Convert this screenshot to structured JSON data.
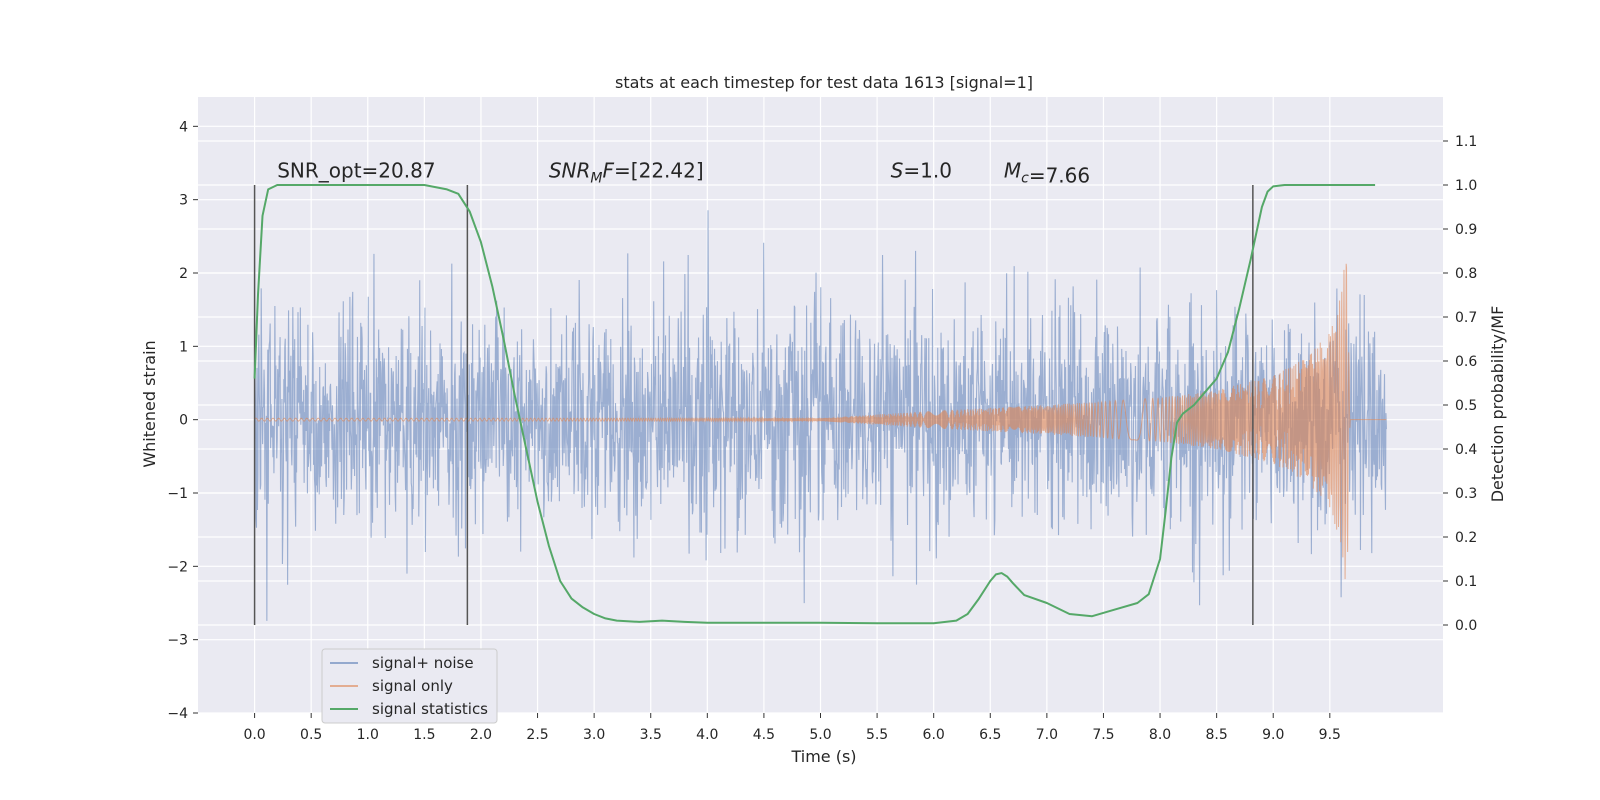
{
  "chart_data": {
    "type": "line",
    "title": "stats at each timestep for test data 1613 [signal=1]",
    "xlabel": "Time (s)",
    "ylabel_left": "Whitened strain",
    "ylabel_right": "Detection probability/MF",
    "xlim": [
      -0.5,
      10.5
    ],
    "ylim_left": [
      -4.0,
      4.4
    ],
    "ylim_right": [
      -0.2,
      1.2
    ],
    "x_ticks": [
      "0.0",
      "0.5",
      "1.0",
      "1.5",
      "2.0",
      "2.5",
      "3.0",
      "3.5",
      "4.0",
      "4.5",
      "5.0",
      "5.5",
      "6.0",
      "6.5",
      "7.0",
      "7.5",
      "8.0",
      "8.5",
      "9.0",
      "9.5"
    ],
    "y_left_ticks": [
      "−4",
      "−3",
      "−2",
      "−1",
      "0",
      "1",
      "2",
      "3",
      "4"
    ],
    "y_right_ticks": [
      "0.0",
      "0.1",
      "0.2",
      "0.3",
      "0.4",
      "0.5",
      "0.6",
      "0.7",
      "0.8",
      "0.9",
      "1.0",
      "1.1"
    ],
    "grid": true,
    "legend_position": "lower-left",
    "colors": {
      "signal_noise": "#4c72b0",
      "signal_only": "#dd8452",
      "signal_statistics": "#55a868",
      "vertical_markers": "#555555",
      "axes_bg": "#eaeaf2",
      "grid": "#ffffff"
    },
    "series": [
      {
        "name": "signal+ noise",
        "description_range": "white noise spanning roughly −2 to 2 with peaks near ±3.5 over 0–10 s",
        "time_range": [
          0.0,
          10.0
        ],
        "envelope": 1.4
      },
      {
        "name": "signal only",
        "time_range": [
          0.0,
          9.68
        ],
        "envelope": [
          [
            0.0,
            0.02
          ],
          [
            5.0,
            0.02
          ],
          [
            6.0,
            0.12
          ],
          [
            7.0,
            0.2
          ],
          [
            8.0,
            0.3
          ],
          [
            8.5,
            0.4
          ],
          [
            9.0,
            0.6
          ],
          [
            9.3,
            0.85
          ],
          [
            9.5,
            1.2
          ],
          [
            9.6,
            1.7
          ],
          [
            9.65,
            2.4
          ],
          [
            9.68,
            0.0
          ]
        ]
      },
      {
        "name": "signal statistics",
        "x": [
          0.0,
          0.03,
          0.07,
          0.12,
          0.2,
          0.3,
          0.5,
          1.0,
          1.5,
          1.7,
          1.8,
          1.9,
          2.0,
          2.1,
          2.2,
          2.3,
          2.4,
          2.5,
          2.6,
          2.7,
          2.8,
          2.9,
          3.0,
          3.1,
          3.2,
          3.4,
          3.6,
          3.8,
          4.0,
          4.5,
          5.0,
          5.5,
          6.0,
          6.2,
          6.3,
          6.4,
          6.5,
          6.55,
          6.6,
          6.65,
          6.7,
          6.8,
          7.0,
          7.2,
          7.4,
          7.6,
          7.8,
          7.9,
          8.0,
          8.05,
          8.1,
          8.15,
          8.2,
          8.3,
          8.4,
          8.5,
          8.6,
          8.7,
          8.8,
          8.9,
          8.95,
          9.0,
          9.1,
          9.5,
          9.9
        ],
        "y": [
          0.56,
          0.75,
          0.93,
          0.99,
          1.0,
          1.0,
          1.0,
          1.0,
          1.0,
          0.99,
          0.98,
          0.94,
          0.87,
          0.77,
          0.65,
          0.52,
          0.4,
          0.28,
          0.18,
          0.1,
          0.06,
          0.04,
          0.025,
          0.015,
          0.01,
          0.007,
          0.01,
          0.007,
          0.005,
          0.005,
          0.005,
          0.004,
          0.004,
          0.01,
          0.025,
          0.06,
          0.1,
          0.115,
          0.118,
          0.11,
          0.095,
          0.068,
          0.05,
          0.025,
          0.02,
          0.035,
          0.05,
          0.07,
          0.15,
          0.26,
          0.38,
          0.46,
          0.48,
          0.5,
          0.53,
          0.56,
          0.62,
          0.72,
          0.83,
          0.95,
          0.985,
          0.997,
          1.0,
          1.0,
          1.0
        ]
      }
    ],
    "vertical_markers": [
      {
        "x": 0.0,
        "y": [
          -2.8,
          3.2
        ]
      },
      {
        "x": 1.88,
        "y": [
          -2.8,
          3.2
        ]
      },
      {
        "x": 8.82,
        "y": [
          -2.8,
          3.2
        ]
      }
    ],
    "annotations": [
      {
        "label": "SNR_opt",
        "value": "=20.87",
        "x": 0.2,
        "y": 3.3,
        "italic": false
      },
      {
        "label": "SNR",
        "sub": "M",
        "label_tail": "F",
        "value": "=[22.42]",
        "x": 2.6,
        "y": 3.3,
        "italic": true
      },
      {
        "label": "S",
        "value": "=1.0",
        "x": 5.62,
        "y": 3.3,
        "italic": true
      },
      {
        "label": "M",
        "sub": "c",
        "value": "=7.66",
        "x": 6.62,
        "y": 3.3,
        "italic": true
      }
    ],
    "legend": [
      "signal+ noise",
      "signal only",
      "signal statistics"
    ]
  }
}
